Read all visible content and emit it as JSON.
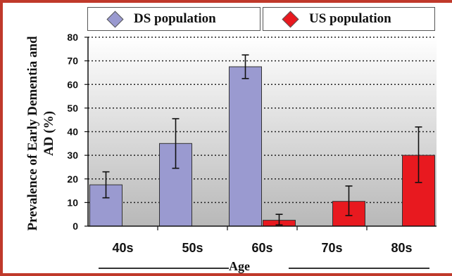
{
  "legend": {
    "ds_label": "DS population",
    "us_label": "US population"
  },
  "colors": {
    "ds": "#9a9ad0",
    "us": "#e8191f",
    "frame": "#c0392b"
  },
  "chart_data": {
    "type": "bar",
    "categories": [
      "40s",
      "50s",
      "60s",
      "70s",
      "80s"
    ],
    "series": [
      {
        "name": "DS population",
        "values": [
          17.5,
          35,
          67.5,
          0,
          0
        ],
        "error_low": [
          12,
          24.5,
          62.5,
          0,
          0
        ],
        "error_high": [
          23,
          45.5,
          72.5,
          0,
          0
        ]
      },
      {
        "name": "US population",
        "values": [
          0,
          0,
          2.5,
          10.5,
          30
        ],
        "error_low": [
          0,
          0,
          0.5,
          4.5,
          18.5
        ],
        "error_high": [
          0,
          0,
          5,
          17,
          42
        ]
      }
    ],
    "xlabel": "Age",
    "ylabel": "Prevalence of Early Dementia and AD (%)",
    "ylim": [
      0,
      80
    ],
    "yticks": [
      0,
      10,
      20,
      30,
      40,
      50,
      60,
      70,
      80
    ],
    "grid": "dotted horizontal",
    "legend": "top"
  }
}
